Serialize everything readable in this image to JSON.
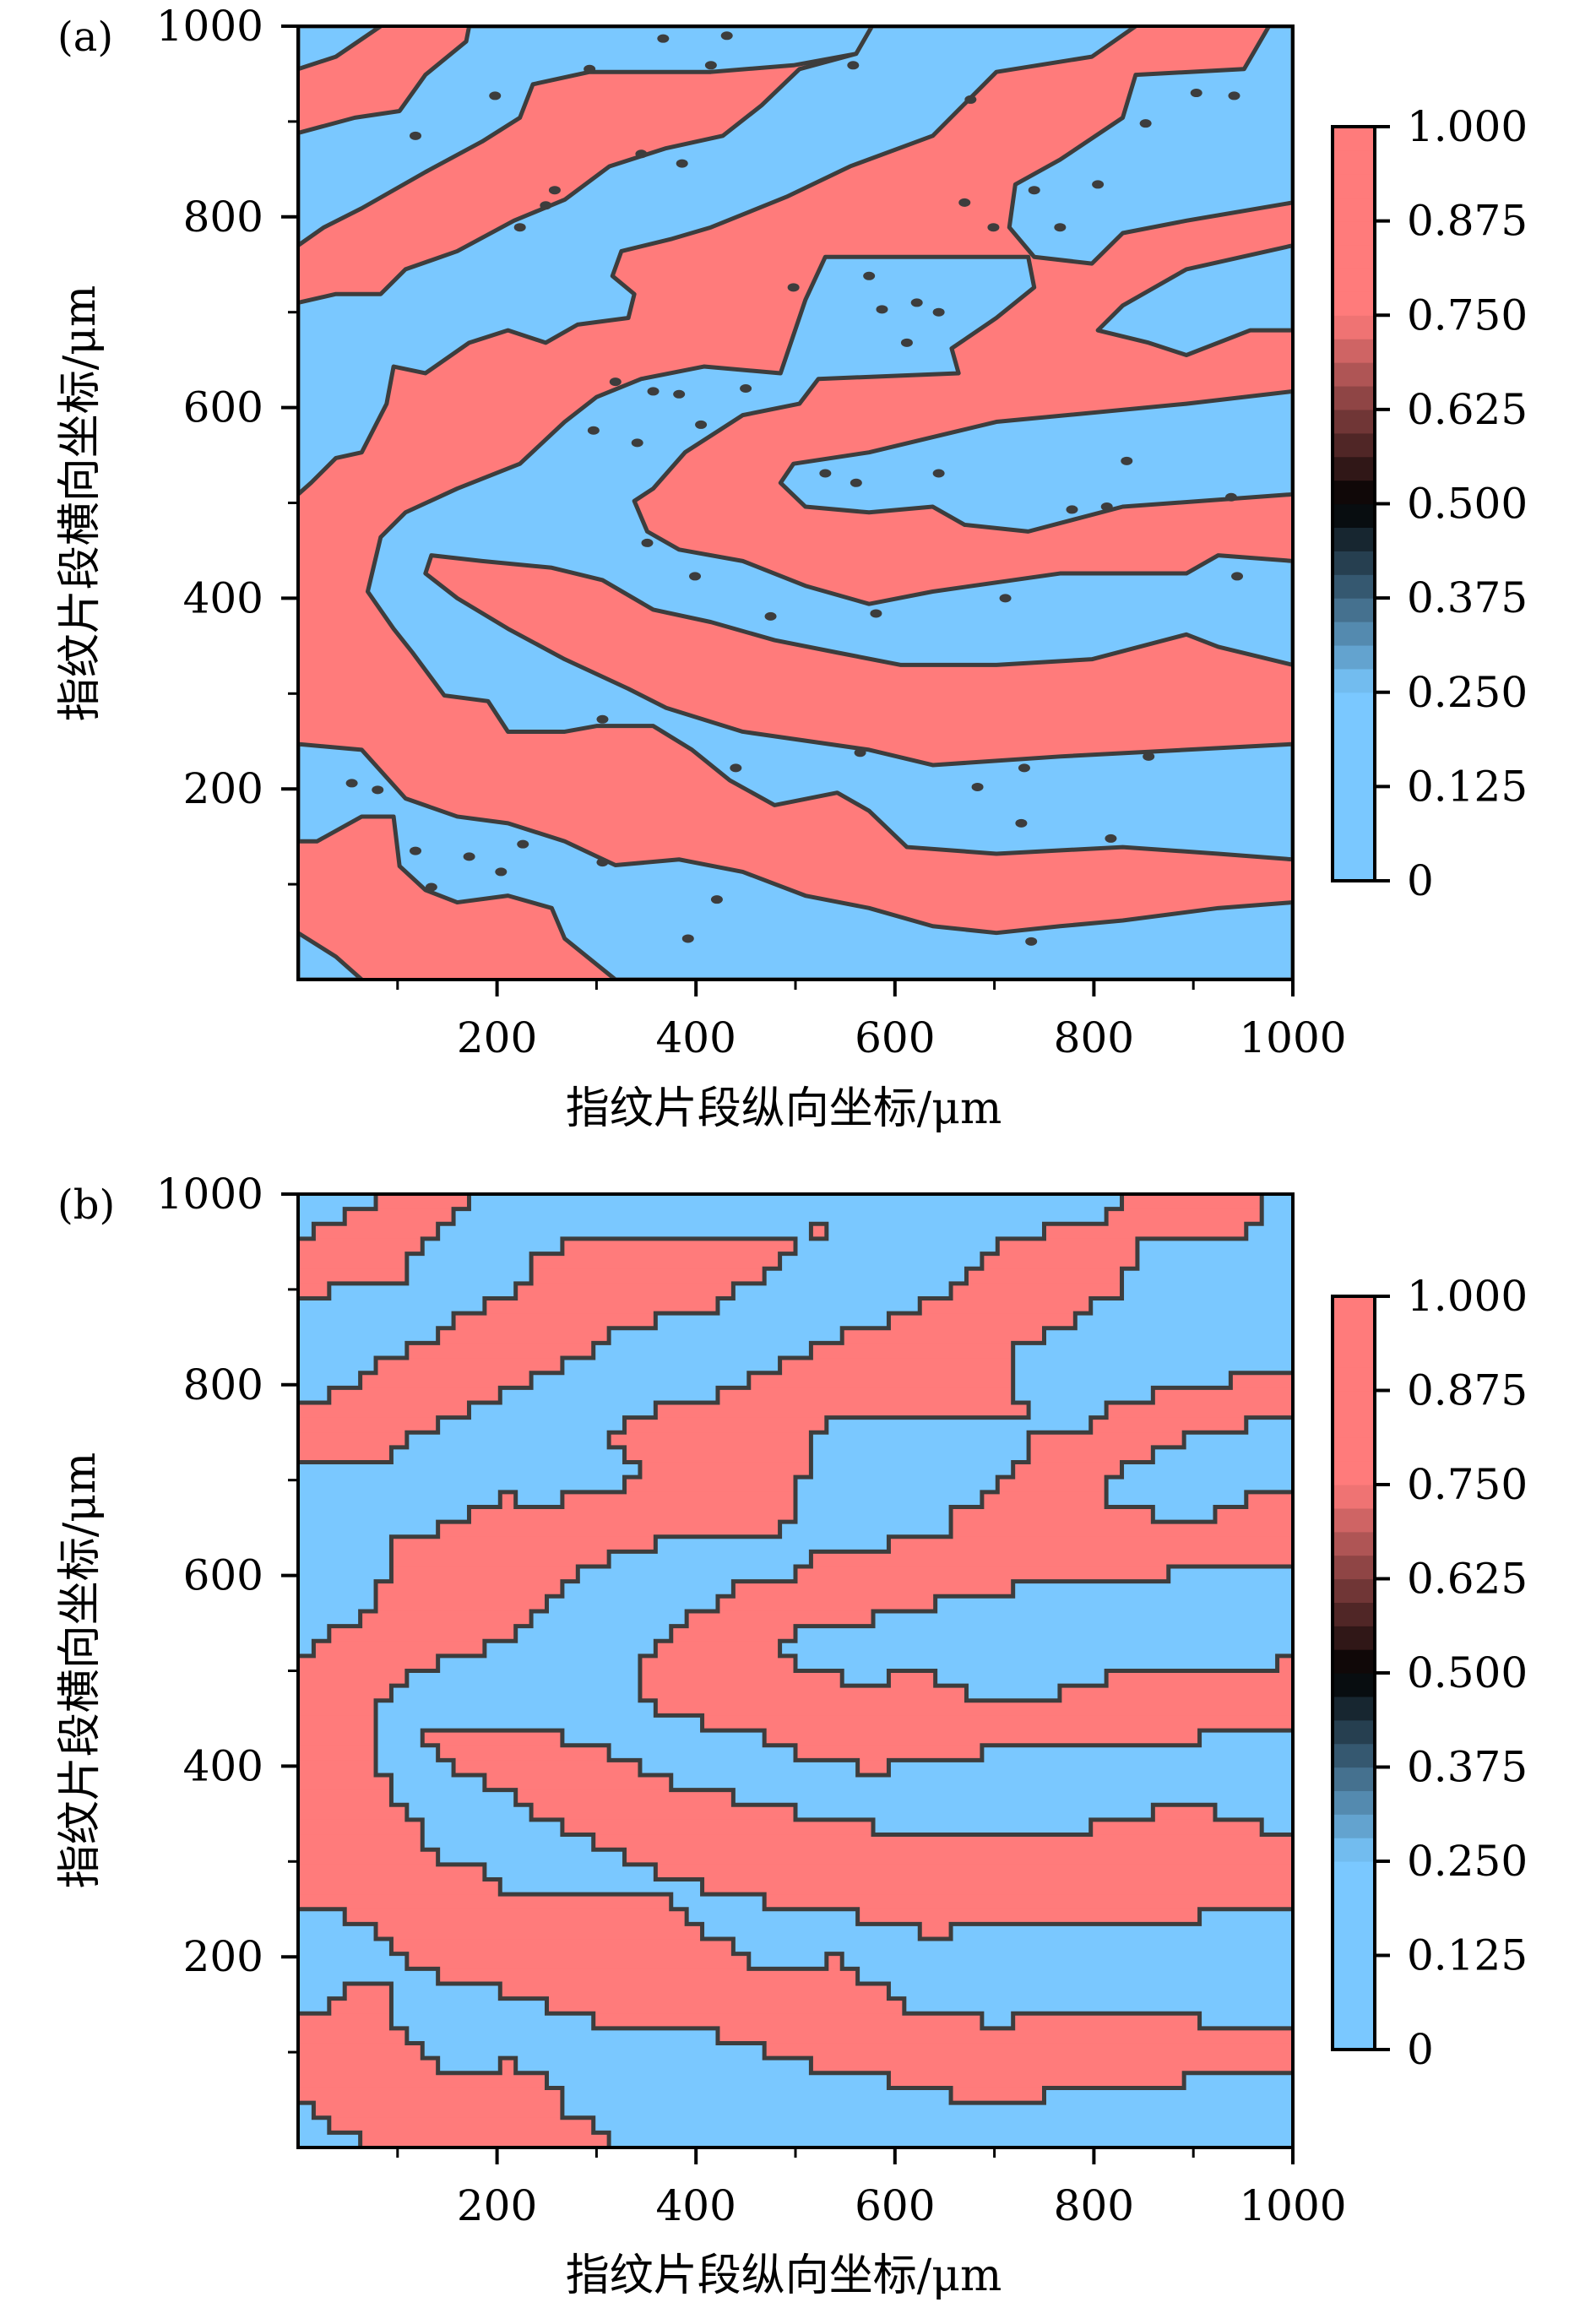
{
  "chart_data": {
    "type": "heatmap",
    "subtype": "filled-contour",
    "panels": [
      {
        "label": "(a)",
        "style": "smooth",
        "xlabel": "指纹片段纵向坐标/μm",
        "ylabel": "指纹片段横向坐标/μm",
        "xlim": [
          0,
          1000
        ],
        "ylim": [
          0,
          1000
        ],
        "xticks": [
          200,
          400,
          600,
          800,
          1000
        ],
        "xtick_labels": [
          "200",
          "400",
          "600",
          "800",
          "1000"
        ],
        "yticks": [
          200,
          400,
          600,
          800,
          1000
        ],
        "ytick_labels": [
          "200",
          "400",
          "600",
          "800",
          "1000"
        ],
        "minor_ticks": [
          100,
          300,
          500,
          700,
          900
        ],
        "background_value": 1.0,
        "region_value": 0.0,
        "blue_regions": [
          [
            [
              0,
              1000
            ],
            [
              83,
              1000
            ],
            [
              38,
              968
            ],
            [
              0,
              955
            ]
          ],
          [
            [
              0,
              888
            ],
            [
              57,
              904
            ],
            [
              102,
              911
            ],
            [
              128,
              949
            ],
            [
              169,
              984
            ],
            [
              172,
              1000
            ],
            [
              577,
              1000
            ],
            [
              561,
              971
            ],
            [
              498,
              959
            ],
            [
              415,
              952
            ],
            [
              293,
              952
            ],
            [
              236,
              939
            ],
            [
              223,
              904
            ],
            [
              185,
              879
            ],
            [
              128,
              847
            ],
            [
              64,
              809
            ],
            [
              26,
              789
            ],
            [
              0,
              770
            ]
          ],
          [
            [
              0,
              710
            ],
            [
              38,
              719
            ],
            [
              83,
              719
            ],
            [
              108,
              745
            ],
            [
              160,
              764
            ],
            [
              217,
              796
            ],
            [
              268,
              818
            ],
            [
              313,
              853
            ],
            [
              370,
              872
            ],
            [
              427,
              885
            ],
            [
              466,
              917
            ],
            [
              504,
              955
            ],
            [
              561,
              971
            ],
            [
              577,
              1000
            ],
            [
              842,
              1000
            ],
            [
              798,
              968
            ],
            [
              702,
              952
            ],
            [
              638,
              885
            ],
            [
              555,
              853
            ],
            [
              491,
              821
            ],
            [
              415,
              789
            ],
            [
              376,
              777
            ],
            [
              325,
              764
            ],
            [
              316,
              738
            ],
            [
              338,
              719
            ],
            [
              332,
              694
            ],
            [
              281,
              687
            ],
            [
              249,
              668
            ],
            [
              211,
              681
            ],
            [
              172,
              668
            ],
            [
              128,
              636
            ],
            [
              96,
              643
            ],
            [
              89,
              604
            ],
            [
              64,
              553
            ],
            [
              38,
              547
            ],
            [
              13,
              521
            ],
            [
              0,
              509
            ]
          ],
          [
            [
              976,
              1000
            ],
            [
              1000,
              1000
            ],
            [
              1000,
              815
            ],
            [
              893,
              796
            ],
            [
              829,
              783
            ],
            [
              798,
              751
            ],
            [
              740,
              758
            ],
            [
              715,
              789
            ],
            [
              721,
              834
            ],
            [
              766,
              860
            ],
            [
              829,
              904
            ],
            [
              842,
              949
            ],
            [
              951,
              955
            ]
          ],
          [
            [
              70,
              407
            ],
            [
              83,
              464
            ],
            [
              108,
              490
            ],
            [
              160,
              515
            ],
            [
              223,
              541
            ],
            [
              268,
              585
            ],
            [
              300,
              611
            ],
            [
              345,
              630
            ],
            [
              408,
              643
            ],
            [
              485,
              636
            ],
            [
              510,
              713
            ],
            [
              530,
              758
            ],
            [
              734,
              758
            ],
            [
              740,
              726
            ],
            [
              702,
              694
            ],
            [
              657,
              662
            ],
            [
              664,
              636
            ],
            [
              523,
              630
            ],
            [
              504,
              604
            ],
            [
              447,
              592
            ],
            [
              389,
              553
            ],
            [
              357,
              515
            ],
            [
              338,
              502
            ],
            [
              351,
              470
            ],
            [
              383,
              451
            ],
            [
              447,
              439
            ],
            [
              510,
              413
            ],
            [
              574,
              394
            ],
            [
              638,
              407
            ],
            [
              766,
              426
            ],
            [
              893,
              426
            ],
            [
              925,
              445
            ],
            [
              1000,
              439
            ],
            [
              1000,
              330
            ],
            [
              925,
              349
            ],
            [
              893,
              362
            ],
            [
              798,
              336
            ],
            [
              702,
              330
            ],
            [
              606,
              330
            ],
            [
              542,
              343
            ],
            [
              479,
              356
            ],
            [
              415,
              375
            ],
            [
              357,
              388
            ],
            [
              306,
              419
            ],
            [
              255,
              432
            ],
            [
              185,
              439
            ],
            [
              134,
              445
            ],
            [
              128,
              426
            ],
            [
              160,
              400
            ],
            [
              211,
              368
            ],
            [
              268,
              336
            ],
            [
              332,
              305
            ],
            [
              370,
              285
            ],
            [
              447,
              260
            ],
            [
              574,
              241
            ],
            [
              638,
              225
            ],
            [
              766,
              234
            ],
            [
              1000,
              247
            ],
            [
              1000,
              126
            ],
            [
              925,
              132
            ],
            [
              829,
              139
            ],
            [
              702,
              132
            ],
            [
              612,
              139
            ],
            [
              574,
              177
            ],
            [
              542,
              196
            ],
            [
              479,
              183
            ],
            [
              434,
              209
            ],
            [
              396,
              241
            ],
            [
              357,
              266
            ],
            [
              300,
              266
            ],
            [
              268,
              260
            ],
            [
              211,
              260
            ],
            [
              191,
              292
            ],
            [
              147,
              298
            ],
            [
              115,
              343
            ],
            [
              96,
              368
            ]
          ],
          [
            [
              1000,
              617
            ],
            [
              893,
              604
            ],
            [
              702,
              585
            ],
            [
              574,
              553
            ],
            [
              498,
              541
            ],
            [
              485,
              521
            ],
            [
              510,
              496
            ],
            [
              574,
              490
            ],
            [
              638,
              496
            ],
            [
              670,
              477
            ],
            [
              734,
              470
            ],
            [
              829,
              496
            ],
            [
              1000,
              509
            ]
          ],
          [
            [
              1000,
              770
            ],
            [
              893,
              745
            ],
            [
              829,
              707
            ],
            [
              804,
              681
            ],
            [
              855,
              668
            ],
            [
              893,
              655
            ],
            [
              957,
              681
            ],
            [
              1000,
              681
            ]
          ],
          [
            [
              0,
              247
            ],
            [
              64,
              241
            ],
            [
              108,
              190
            ],
            [
              160,
              171
            ],
            [
              211,
              164
            ],
            [
              268,
              145
            ],
            [
              319,
              120
            ],
            [
              383,
              126
            ],
            [
              447,
              113
            ],
            [
              510,
              88
            ],
            [
              574,
              75
            ],
            [
              638,
              56
            ],
            [
              702,
              49
            ],
            [
              766,
              56
            ],
            [
              829,
              62
            ],
            [
              925,
              75
            ],
            [
              1000,
              81
            ],
            [
              1000,
              0
            ],
            [
              319,
              0
            ],
            [
              268,
              43
            ],
            [
              255,
              75
            ],
            [
              211,
              88
            ],
            [
              160,
              81
            ],
            [
              128,
              94
            ],
            [
              102,
              119
            ],
            [
              96,
              171
            ],
            [
              64,
              171
            ],
            [
              19,
              145
            ],
            [
              0,
              145
            ]
          ],
          [
            [
              0,
              0
            ],
            [
              64,
              0
            ],
            [
              38,
              24
            ],
            [
              0,
              49
            ]
          ]
        ],
        "dots": [
          [
            367,
            987
          ],
          [
            431,
            990
          ],
          [
            293,
            955
          ],
          [
            415,
            959
          ],
          [
            558,
            959
          ],
          [
            676,
            923
          ],
          [
            903,
            930
          ],
          [
            941,
            927
          ],
          [
            852,
            898
          ],
          [
            118,
            885
          ],
          [
            198,
            927
          ],
          [
            345,
            866
          ],
          [
            386,
            856
          ],
          [
            258,
            828
          ],
          [
            249,
            812
          ],
          [
            223,
            789
          ],
          [
            740,
            828
          ],
          [
            804,
            834
          ],
          [
            670,
            815
          ],
          [
            766,
            789
          ],
          [
            699,
            789
          ],
          [
            587,
            703
          ],
          [
            622,
            710
          ],
          [
            644,
            700
          ],
          [
            612,
            668
          ],
          [
            574,
            738
          ],
          [
            498,
            726
          ],
          [
            319,
            627
          ],
          [
            357,
            617
          ],
          [
            383,
            614
          ],
          [
            450,
            620
          ],
          [
            297,
            576
          ],
          [
            341,
            563
          ],
          [
            405,
            582
          ],
          [
            530,
            531
          ],
          [
            561,
            521
          ],
          [
            644,
            531
          ],
          [
            833,
            544
          ],
          [
            778,
            493
          ],
          [
            813,
            496
          ],
          [
            938,
            506
          ],
          [
            351,
            458
          ],
          [
            399,
            423
          ],
          [
            475,
            381
          ],
          [
            581,
            384
          ],
          [
            711,
            400
          ],
          [
            944,
            423
          ],
          [
            306,
            273
          ],
          [
            440,
            222
          ],
          [
            565,
            238
          ],
          [
            683,
            202
          ],
          [
            730,
            222
          ],
          [
            855,
            234
          ],
          [
            727,
            164
          ],
          [
            817,
            148
          ],
          [
            421,
            84
          ],
          [
            392,
            43
          ],
          [
            737,
            40
          ],
          [
            54,
            206
          ],
          [
            80,
            199
          ],
          [
            118,
            135
          ],
          [
            172,
            129
          ],
          [
            204,
            113
          ],
          [
            226,
            142
          ],
          [
            306,
            123
          ],
          [
            134,
            97
          ]
        ]
      },
      {
        "label": "(b)",
        "style": "pixelated",
        "xlabel": "指纹片段纵向坐标/μm",
        "ylabel": "指纹片段横向坐标/μm",
        "xlim": [
          0,
          1000
        ],
        "ylim": [
          0,
          1000
        ],
        "xticks": [
          200,
          400,
          600,
          800,
          1000
        ],
        "xtick_labels": [
          "200",
          "400",
          "600",
          "800",
          "1000"
        ],
        "yticks": [
          200,
          400,
          600,
          800,
          1000
        ],
        "ytick_labels": [
          "200",
          "400",
          "600",
          "800",
          "1000"
        ],
        "minor_ticks": [
          100,
          300,
          500,
          700,
          900
        ]
      }
    ],
    "colorbar": {
      "range": [
        0,
        1
      ],
      "ticks": [
        1.0,
        0.875,
        0.75,
        0.625,
        0.5,
        0.375,
        0.25,
        0.125,
        0
      ],
      "tick_labels": [
        "1.000",
        "0.875",
        "0.750",
        "0.625",
        "0.500",
        "0.375",
        "0.250",
        "0.125",
        "0"
      ],
      "levels": 32,
      "colors": {
        "low": "#7AC8FF",
        "mid": "#000000",
        "high": "#FF7B7B",
        "contour": "#3D3D3D"
      }
    }
  }
}
